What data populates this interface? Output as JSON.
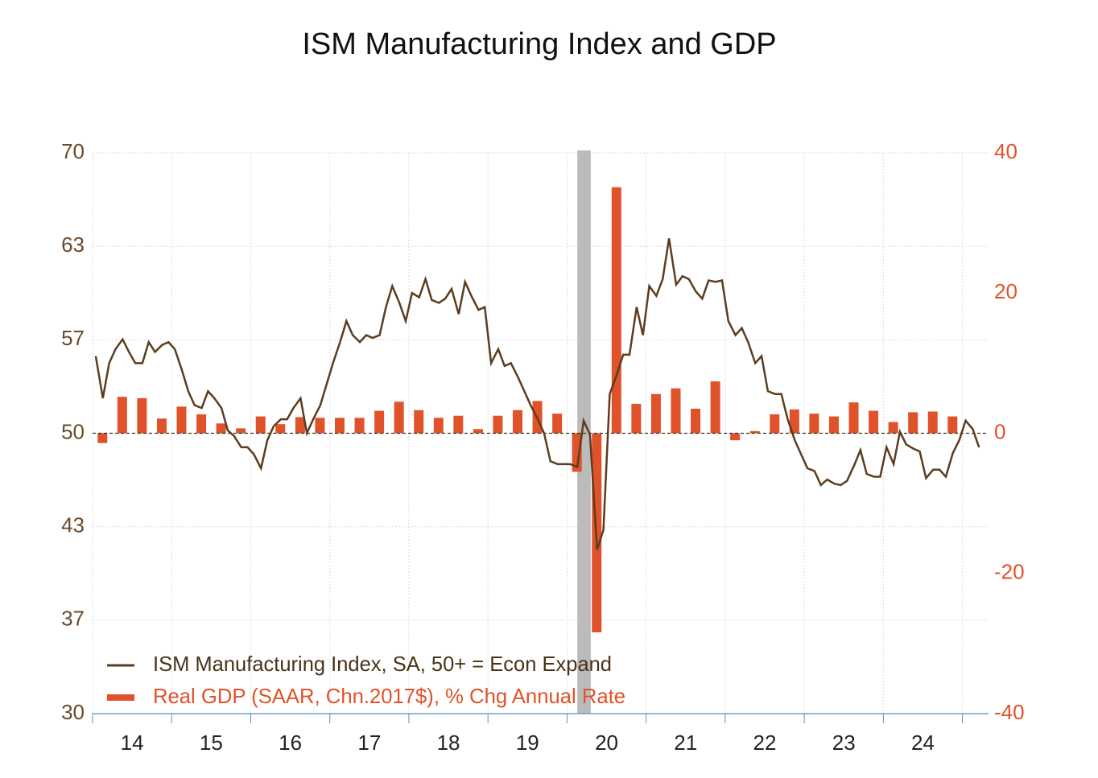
{
  "chart_data": {
    "type": "combo",
    "title": "ISM Manufacturing Index and GDP",
    "xlim": [
      2014,
      2025.33
    ],
    "xticks": [
      {
        "value": 2014.5,
        "label": "14"
      },
      {
        "value": 2015.5,
        "label": "15"
      },
      {
        "value": 2016.5,
        "label": "16"
      },
      {
        "value": 2017.5,
        "label": "17"
      },
      {
        "value": 2018.5,
        "label": "18"
      },
      {
        "value": 2019.5,
        "label": "19"
      },
      {
        "value": 2020.5,
        "label": "20"
      },
      {
        "value": 2021.5,
        "label": "21"
      },
      {
        "value": 2022.5,
        "label": "22"
      },
      {
        "value": 2023.5,
        "label": "23"
      },
      {
        "value": 2024.5,
        "label": "24"
      }
    ],
    "xgrid": [
      2014,
      2015,
      2016,
      2017,
      2018,
      2019,
      2020,
      2021,
      2022,
      2023,
      2024,
      2025
    ],
    "ylim": [
      30,
      70
    ],
    "yticks": [
      30,
      {
        "value": 36.67,
        "label": "37"
      },
      {
        "value": 43.33,
        "label": "43"
      },
      50,
      {
        "value": 56.67,
        "label": "57"
      },
      {
        "value": 63.33,
        "label": "63"
      },
      70
    ],
    "y2lim": [
      -40,
      40
    ],
    "y2ticks": [
      -40,
      -20,
      0,
      20,
      40
    ],
    "reference_line": 50,
    "recession": [
      2020.13,
      2020.3
    ],
    "grid": true,
    "legend": "lower-left",
    "series": [
      {
        "name": "ISM Manufacturing Index, SA, 50+ = Econ Expand",
        "color": "#5c3d1e",
        "type": "line",
        "x": [
          2014.04,
          2014.13,
          2014.21,
          2014.29,
          2014.38,
          2014.46,
          2014.54,
          2014.63,
          2014.71,
          2014.79,
          2014.88,
          2014.96,
          2015.04,
          2015.13,
          2015.21,
          2015.29,
          2015.38,
          2015.46,
          2015.54,
          2015.63,
          2015.71,
          2015.79,
          2015.88,
          2015.96,
          2016.04,
          2016.13,
          2016.21,
          2016.29,
          2016.38,
          2016.46,
          2016.54,
          2016.63,
          2016.71,
          2016.79,
          2016.88,
          2016.96,
          2017.04,
          2017.13,
          2017.21,
          2017.29,
          2017.38,
          2017.46,
          2017.54,
          2017.63,
          2017.71,
          2017.79,
          2017.88,
          2017.96,
          2018.04,
          2018.13,
          2018.21,
          2018.29,
          2018.38,
          2018.46,
          2018.54,
          2018.63,
          2018.71,
          2018.79,
          2018.88,
          2018.96,
          2019.04,
          2019.13,
          2019.21,
          2019.29,
          2019.38,
          2019.46,
          2019.54,
          2019.63,
          2019.71,
          2019.79,
          2019.88,
          2019.96,
          2020.04,
          2020.13,
          2020.21,
          2020.29,
          2020.38,
          2020.46,
          2020.54,
          2020.63,
          2020.71,
          2020.79,
          2020.88,
          2020.96,
          2021.04,
          2021.13,
          2021.21,
          2021.29,
          2021.38,
          2021.46,
          2021.54,
          2021.63,
          2021.71,
          2021.79,
          2021.88,
          2021.96,
          2022.04,
          2022.13,
          2022.21,
          2022.29,
          2022.38,
          2022.46,
          2022.54,
          2022.63,
          2022.71,
          2022.79,
          2022.88,
          2022.96,
          2023.04,
          2023.13,
          2023.21,
          2023.29,
          2023.38,
          2023.46,
          2023.54,
          2023.63,
          2023.71,
          2023.79,
          2023.88,
          2023.96,
          2024.04,
          2024.13,
          2024.21,
          2024.29,
          2024.38,
          2024.46,
          2024.54,
          2024.63,
          2024.71,
          2024.79,
          2024.88,
          2024.96,
          2025.04,
          2025.13,
          2025.21
        ],
        "values": [
          55.5,
          52.5,
          55.0,
          56.0,
          56.7,
          55.8,
          55.0,
          55.0,
          56.5,
          55.8,
          56.3,
          56.5,
          56.0,
          54.5,
          53.0,
          52.0,
          51.8,
          53.0,
          52.5,
          51.8,
          50.2,
          49.8,
          49.0,
          49.0,
          48.5,
          47.5,
          49.5,
          50.5,
          51.0,
          51.0,
          51.8,
          52.5,
          50.0,
          51.0,
          52.0,
          53.5,
          55.0,
          56.5,
          58.0,
          57.0,
          56.5,
          57.0,
          56.8,
          57.0,
          59.0,
          60.5,
          59.3,
          58.0,
          60.0,
          59.7,
          61.0,
          59.5,
          59.3,
          59.6,
          60.3,
          58.5,
          60.8,
          59.8,
          58.8,
          59.0,
          55.0,
          56.0,
          54.8,
          55.0,
          54.0,
          53.0,
          52.0,
          51.0,
          50.0,
          48.0,
          47.8,
          47.8,
          47.8,
          47.6,
          50.9,
          49.9,
          41.7,
          43.1,
          52.8,
          54.2,
          55.6,
          55.6,
          59.0,
          57.0,
          60.5,
          59.8,
          61.0,
          63.9,
          60.6,
          61.2,
          61.0,
          60.1,
          59.6,
          60.9,
          60.8,
          60.9,
          58.0,
          57.0,
          57.5,
          56.5,
          55.0,
          55.5,
          53.0,
          52.8,
          52.8,
          51.0,
          49.5,
          48.5,
          47.5,
          47.3,
          46.3,
          46.7,
          46.4,
          46.3,
          46.6,
          47.7,
          48.8,
          47.1,
          46.9,
          46.9,
          49.0,
          47.8,
          50.1,
          49.2,
          48.9,
          48.7,
          46.8,
          47.4,
          47.4,
          46.9,
          48.6,
          49.5,
          50.9,
          50.3,
          49.0
        ]
      },
      {
        "name": "Real GDP (SAAR, Chn.2017$), % Chg Annual Rate",
        "color": "#e0522a",
        "type": "bar",
        "axis": "y2",
        "x": [
          2014.125,
          2014.375,
          2014.625,
          2014.875,
          2015.125,
          2015.375,
          2015.625,
          2015.875,
          2016.125,
          2016.375,
          2016.625,
          2016.875,
          2017.125,
          2017.375,
          2017.625,
          2017.875,
          2018.125,
          2018.375,
          2018.625,
          2018.875,
          2019.125,
          2019.375,
          2019.625,
          2019.875,
          2020.125,
          2020.375,
          2020.625,
          2020.875,
          2021.125,
          2021.375,
          2021.625,
          2021.875,
          2022.125,
          2022.375,
          2022.625,
          2022.875,
          2023.125,
          2023.375,
          2023.625,
          2023.875,
          2024.125,
          2024.375,
          2024.625,
          2024.875
        ],
        "values": [
          -1.4,
          5.2,
          5.0,
          2.1,
          3.8,
          2.7,
          1.4,
          0.7,
          2.4,
          1.3,
          2.3,
          2.2,
          2.2,
          2.2,
          3.2,
          4.5,
          3.3,
          2.2,
          2.5,
          0.6,
          2.5,
          3.3,
          4.6,
          2.8,
          -5.5,
          -28.4,
          35.1,
          4.2,
          5.6,
          6.4,
          3.5,
          7.4,
          -1.0,
          0.3,
          2.7,
          3.4,
          2.8,
          2.4,
          4.4,
          3.2,
          1.6,
          3.0,
          3.1,
          2.4
        ]
      }
    ]
  }
}
